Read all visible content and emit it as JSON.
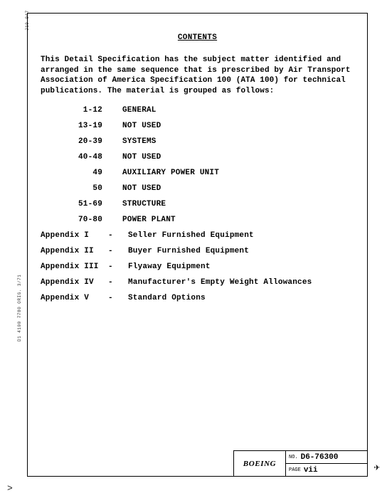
{
  "heading": "CONTENTS",
  "intro": "This Detail Specification has the subject matter identified and arranged in the same sequence that is prescribed by Air Transport Association of America Specification 100 (ATA 100) for technical publications.  The material is grouped as follows:",
  "toc": [
    {
      "range": "1-12",
      "label": "GENERAL"
    },
    {
      "range": "13-19",
      "label": "NOT USED"
    },
    {
      "range": "20-39",
      "label": "SYSTEMS"
    },
    {
      "range": "40-48",
      "label": "NOT USED"
    },
    {
      "range": "49",
      "label": "AUXILIARY POWER UNIT"
    },
    {
      "range": "50",
      "label": "NOT USED"
    },
    {
      "range": "51-69",
      "label": "STRUCTURE"
    },
    {
      "range": "70-80",
      "label": "POWER PLANT"
    }
  ],
  "appendix": [
    {
      "key": "Appendix I",
      "dash": "-",
      "label": "Seller Furnished Equipment"
    },
    {
      "key": "Appendix II",
      "dash": "-",
      "label": "Buyer Furnished Equipment"
    },
    {
      "key": "Appendix III",
      "dash": "-",
      "label": "Flyaway Equipment"
    },
    {
      "key": "Appendix IV",
      "dash": "-",
      "label": "Manufacturer's Empty Weight Allowances"
    },
    {
      "key": "Appendix V",
      "dash": "-",
      "label": "Standard Options"
    }
  ],
  "footer": {
    "logo": "BOEING",
    "no_key": "NO.",
    "no_val": "D6-76300",
    "page_key": "PAGE",
    "page_val": "vii"
  },
  "side_text_bottom": "D1 4100 7780 ORIG. 3/71",
  "side_text_top": "J19-047",
  "corner_mark": ">",
  "plane_glyph": "✈"
}
